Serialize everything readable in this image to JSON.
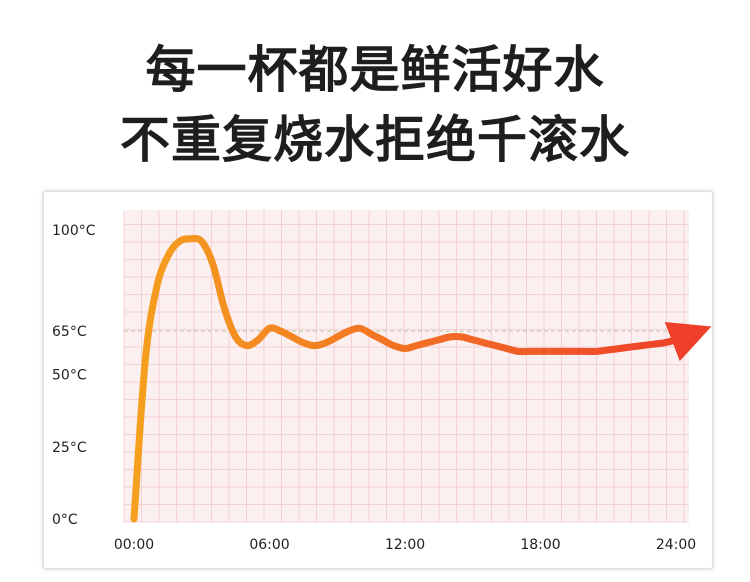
{
  "headline": {
    "line1": "每一杯都是鲜活好水",
    "line2": "不重复烧水拒绝千滚水"
  },
  "colors": {
    "plot_background": "#fceff0",
    "grid_line": "#f1c9cc",
    "threshold_line": "#b9c8a0",
    "curve_start": "#f5a01e",
    "curve_end": "#ee3f2a",
    "text": "#222222"
  },
  "chart_data": {
    "type": "line",
    "title": "",
    "xlabel": "",
    "ylabel": "",
    "x_ticks": [
      "00:00",
      "06:00",
      "12:00",
      "18:00",
      "24:00"
    ],
    "y_ticks": [
      "0°C",
      "25°C",
      "50°C",
      "65°C",
      "100°C"
    ],
    "y_tick_values": [
      0,
      25,
      50,
      65,
      100
    ],
    "xlim": [
      0,
      24
    ],
    "ylim": [
      0,
      100
    ],
    "grid": true,
    "legend": "none",
    "reference_line": {
      "y": 65,
      "style": "dashed"
    },
    "series": [
      {
        "x": [
          0,
          0.5,
          1,
          1.5,
          2,
          2.5,
          3,
          3.5,
          4,
          4.5,
          5,
          5.5,
          6,
          6.5,
          7,
          7.5,
          8,
          8.5,
          9,
          9.5,
          10,
          10.5,
          11,
          11.5,
          12,
          12.5,
          13,
          13.5,
          14,
          14.5,
          15,
          15.5,
          16,
          16.5,
          17,
          17.5,
          18,
          18.5,
          19,
          19.5,
          20,
          20.5,
          21,
          21.5,
          22,
          22.5,
          23,
          23.5,
          24,
          24.7
        ],
        "y": [
          0,
          55,
          80,
          91,
          96,
          97,
          96,
          88,
          73,
          63,
          60,
          62,
          66,
          65,
          63,
          61,
          60,
          61,
          63,
          65,
          66,
          64,
          62,
          60,
          59,
          60,
          61,
          62,
          63,
          63,
          62,
          61,
          60,
          59,
          58,
          58,
          58,
          58,
          58,
          58,
          58,
          58,
          58.5,
          59,
          59.5,
          60,
          60.5,
          61,
          62,
          64
        ]
      }
    ]
  }
}
